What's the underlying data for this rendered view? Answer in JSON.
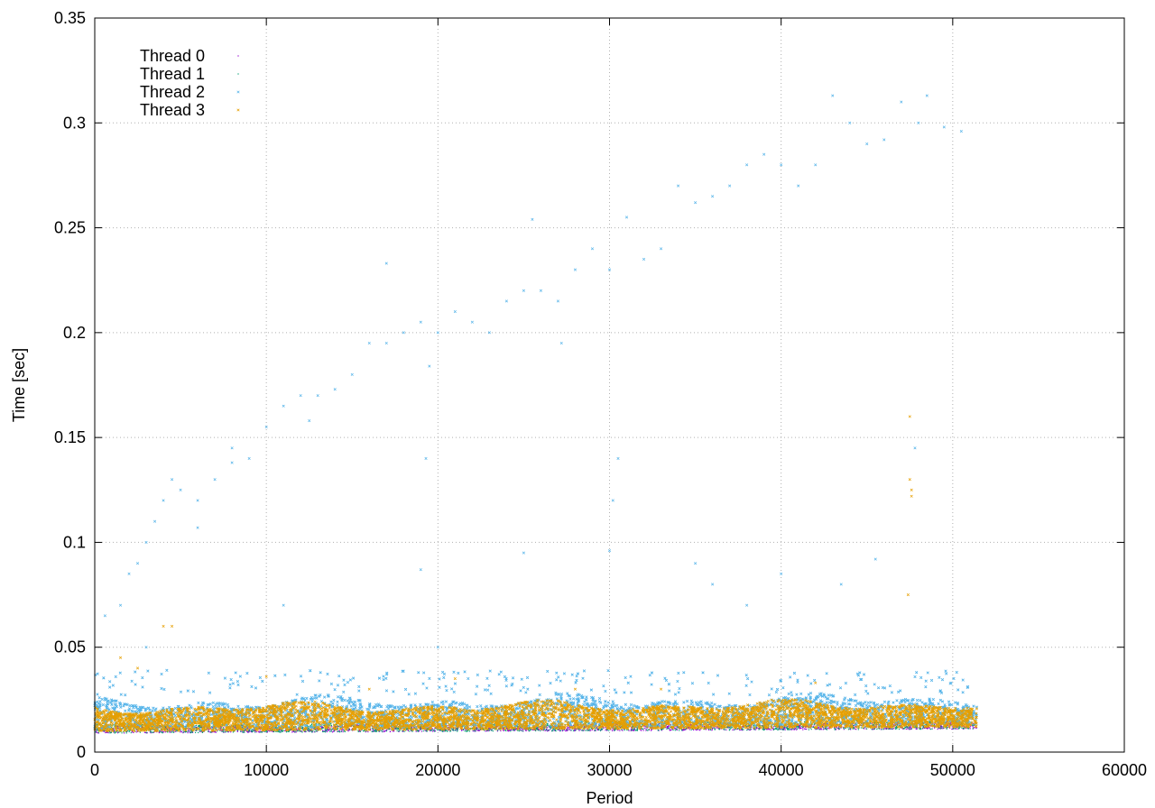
{
  "chart_data": {
    "type": "scatter",
    "title": "",
    "xlabel": "Period",
    "ylabel": "Time [sec]",
    "xlim": [
      0,
      60000
    ],
    "ylim": [
      0,
      0.35
    ],
    "x_ticks": [
      0,
      10000,
      20000,
      30000,
      40000,
      50000,
      60000
    ],
    "y_ticks": [
      0,
      0.05,
      0.1,
      0.15,
      0.2,
      0.25,
      0.3,
      0.35
    ],
    "x_tick_labels": [
      "0",
      "10000",
      "20000",
      "30000",
      "40000",
      "50000",
      "60000"
    ],
    "y_tick_labels": [
      "0",
      "0.05",
      "0.1",
      "0.15",
      "0.2",
      "0.25",
      "0.3",
      "0.35"
    ],
    "grid": true,
    "legend_position": "top-left",
    "x_max_data": 51400,
    "series": [
      {
        "name": "Thread 0",
        "color": "#9400d3",
        "marker": "point",
        "band": {
          "min": 0.009,
          "max": 0.013
        },
        "outliers": [
          [
            500,
            0.016
          ],
          [
            12000,
            0.015
          ],
          [
            30000,
            0.016
          ],
          [
            47500,
            0.015
          ]
        ]
      },
      {
        "name": "Thread 1",
        "color": "#009e73",
        "marker": "point",
        "band": {
          "min": 0.009,
          "max": 0.014
        },
        "outliers": [
          [
            2000,
            0.017
          ],
          [
            18000,
            0.016
          ],
          [
            36000,
            0.017
          ],
          [
            50000,
            0.016
          ]
        ]
      },
      {
        "name": "Thread 2",
        "color": "#56b4e9",
        "marker": "cross",
        "band": {
          "min": 0.011,
          "max": 0.027
        },
        "outliers": [
          [
            600,
            0.065
          ],
          [
            1500,
            0.07
          ],
          [
            2000,
            0.085
          ],
          [
            2500,
            0.09
          ],
          [
            3000,
            0.1
          ],
          [
            3500,
            0.11
          ],
          [
            4000,
            0.12
          ],
          [
            4500,
            0.13
          ],
          [
            5000,
            0.125
          ],
          [
            6000,
            0.12
          ],
          [
            7000,
            0.13
          ],
          [
            8000,
            0.145
          ],
          [
            9000,
            0.14
          ],
          [
            10000,
            0.155
          ],
          [
            11000,
            0.165
          ],
          [
            12000,
            0.17
          ],
          [
            13000,
            0.17
          ],
          [
            14000,
            0.173
          ],
          [
            15000,
            0.18
          ],
          [
            16000,
            0.195
          ],
          [
            17000,
            0.195
          ],
          [
            18000,
            0.2
          ],
          [
            19000,
            0.205
          ],
          [
            20000,
            0.2
          ],
          [
            21000,
            0.21
          ],
          [
            22000,
            0.205
          ],
          [
            23000,
            0.2
          ],
          [
            24000,
            0.215
          ],
          [
            25000,
            0.22
          ],
          [
            26000,
            0.22
          ],
          [
            27000,
            0.215
          ],
          [
            28000,
            0.23
          ],
          [
            29000,
            0.24
          ],
          [
            30000,
            0.23
          ],
          [
            31000,
            0.255
          ],
          [
            32000,
            0.235
          ],
          [
            33000,
            0.24
          ],
          [
            34000,
            0.27
          ],
          [
            35000,
            0.262
          ],
          [
            36000,
            0.265
          ],
          [
            37000,
            0.27
          ],
          [
            38000,
            0.28
          ],
          [
            39000,
            0.285
          ],
          [
            40000,
            0.28
          ],
          [
            41000,
            0.27
          ],
          [
            42000,
            0.28
          ],
          [
            43000,
            0.313
          ],
          [
            44000,
            0.3
          ],
          [
            45000,
            0.29
          ],
          [
            46000,
            0.292
          ],
          [
            47000,
            0.31
          ],
          [
            48000,
            0.3
          ],
          [
            48500,
            0.313
          ],
          [
            49500,
            0.298
          ],
          [
            50500,
            0.296
          ],
          [
            8000,
            0.138
          ],
          [
            12500,
            0.158
          ],
          [
            17000,
            0.233
          ],
          [
            19500,
            0.184
          ],
          [
            25500,
            0.254
          ],
          [
            27200,
            0.195
          ],
          [
            6000,
            0.107
          ],
          [
            3000,
            0.05
          ],
          [
            19000,
            0.087
          ],
          [
            25000,
            0.095
          ],
          [
            30000,
            0.096
          ],
          [
            35000,
            0.09
          ],
          [
            11000,
            0.07
          ],
          [
            19300,
            0.14
          ],
          [
            30500,
            0.14
          ],
          [
            30200,
            0.12
          ],
          [
            36000,
            0.08
          ],
          [
            40000,
            0.085
          ],
          [
            43500,
            0.08
          ],
          [
            45500,
            0.092
          ],
          [
            47800,
            0.145
          ],
          [
            20000,
            0.05
          ],
          [
            38000,
            0.07
          ]
        ]
      },
      {
        "name": "Thread 3",
        "color": "#e69f00",
        "marker": "cross",
        "band": {
          "min": 0.01,
          "max": 0.024
        },
        "outliers": [
          [
            4000,
            0.06
          ],
          [
            4500,
            0.06
          ],
          [
            10000,
            0.036
          ],
          [
            21000,
            0.035
          ],
          [
            33000,
            0.03
          ],
          [
            47500,
            0.16
          ],
          [
            47500,
            0.13
          ],
          [
            47600,
            0.125
          ],
          [
            47600,
            0.122
          ],
          [
            47400,
            0.075
          ],
          [
            2500,
            0.04
          ],
          [
            1500,
            0.045
          ],
          [
            16000,
            0.03
          ],
          [
            28000,
            0.03
          ],
          [
            42000,
            0.033
          ]
        ]
      }
    ]
  }
}
